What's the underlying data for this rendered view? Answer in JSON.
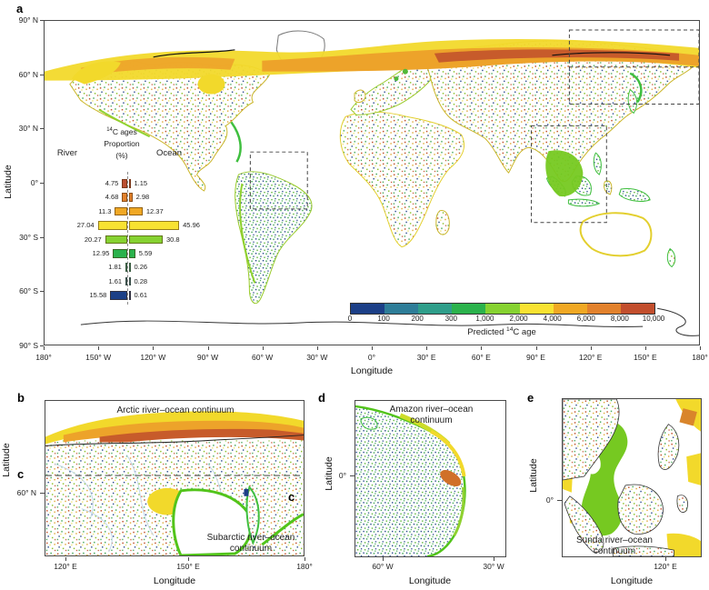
{
  "panel_a": {
    "label": "a",
    "xlabel": "Longitude",
    "ylabel": "Latitude",
    "yticks": [
      "90° N",
      "60° N",
      "30° N",
      "0°",
      "30° S",
      "60° S",
      "90° S"
    ],
    "xticks": [
      "180°",
      "150° W",
      "120° W",
      "90° W",
      "60° W",
      "30° W",
      "0°",
      "30° E",
      "60° E",
      "90° E",
      "120° E",
      "150° E",
      "180°"
    ],
    "inset": {
      "title_sup": "14",
      "title_rest": "C ages",
      "title_line2": "Proportion",
      "title_line3": "(%)",
      "left_header": "River",
      "right_header": "Ocean",
      "rows": [
        {
          "river": "4.75",
          "ocean": "1.15",
          "color": "#bc4f31"
        },
        {
          "river": "4.68",
          "ocean": "2.98",
          "color": "#e2812c"
        },
        {
          "river": "11.3",
          "ocean": "12.37",
          "color": "#f0a824"
        },
        {
          "river": "27.04",
          "ocean": "45.96",
          "color": "#f8e232"
        },
        {
          "river": "20.27",
          "ocean": "30.8",
          "color": "#86d231"
        },
        {
          "river": "12.95",
          "ocean": "5.59",
          "color": "#2bb24c"
        },
        {
          "river": "1.81",
          "ocean": "0.26",
          "color": "#2f9e8a"
        },
        {
          "river": "1.61",
          "ocean": "0.28",
          "color": "#2e7d98"
        },
        {
          "river": "15.58",
          "ocean": "0.61",
          "color": "#1c3f87"
        }
      ]
    },
    "colorbar": {
      "ticks": [
        "0",
        "100",
        "200",
        "300",
        "1,000",
        "2,000",
        "4,000",
        "6,000",
        "8,000",
        "10,000"
      ],
      "label_pre": "Predicted ",
      "label_sup": "14",
      "label_post": "C age",
      "colors": [
        "#1c3f87",
        "#2e7d98",
        "#2f9e8a",
        "#2bb24c",
        "#86d231",
        "#f8e232",
        "#f0a824",
        "#e2812c",
        "#c24e2d"
      ]
    }
  },
  "panel_b": {
    "label": "b",
    "title": "Arctic river–ocean continuum",
    "ylabel": "Latitude",
    "ytick": "60° N",
    "xticks": [
      "120° E",
      "150° E",
      "180°"
    ],
    "xlabel": "Longitude"
  },
  "panel_c": {
    "label": "c",
    "inner_label": "c",
    "title_line1": "Subarctic river–ocean",
    "title_line2": "continuum"
  },
  "panel_d": {
    "label": "d",
    "title_line1": "Amazon river–ocean",
    "title_line2": "continuum",
    "ylabel": "Latitude",
    "ytick": "0°",
    "xticks": [
      "60° W",
      "30° W"
    ],
    "xlabel": "Longitude"
  },
  "panel_e": {
    "label": "e",
    "title_line1": "Sunda river–ocean",
    "title_line2": "continuum",
    "ylabel": "Latitude",
    "ytick": "0°",
    "xticks": [
      "120° E"
    ],
    "xlabel": "Longitude"
  },
  "chart_data": [
    {
      "type": "bar",
      "subtype": "horizontal_diverging_butterfly",
      "title": "14C ages Proportion (%)",
      "groups": [
        "River",
        "Ocean"
      ],
      "age_bins_from_colorbar_oldest_to_youngest": [
        "8,000–10,000",
        "6,000–8,000",
        "4,000–6,000",
        "2,000–4,000",
        "1,000–2,000",
        "300–1,000",
        "200–300",
        "100–200",
        "0–100"
      ],
      "series": [
        {
          "name": "River",
          "values": [
            4.75,
            4.68,
            11.3,
            27.04,
            20.27,
            12.95,
            1.81,
            1.61,
            15.58
          ]
        },
        {
          "name": "Ocean",
          "values": [
            1.15,
            2.98,
            12.37,
            45.96,
            30.8,
            5.59,
            0.26,
            0.28,
            0.61
          ]
        }
      ],
      "unit": "%",
      "row_colors_top_to_bottom": [
        "#bc4f31",
        "#e2812c",
        "#f0a824",
        "#f8e232",
        "#86d231",
        "#2bb24c",
        "#2f9e8a",
        "#2e7d98",
        "#1c3f87"
      ]
    },
    {
      "type": "heatmap",
      "subtype": "map_colorbar",
      "label": "Predicted 14C age",
      "tick_labels": [
        "0",
        "100",
        "200",
        "300",
        "1,000",
        "2,000",
        "4,000",
        "6,000",
        "8,000",
        "10,000"
      ],
      "segment_colors": [
        "#1c3f87",
        "#2e7d98",
        "#2f9e8a",
        "#2bb24c",
        "#86d231",
        "#f8e232",
        "#f0a824",
        "#e2812c",
        "#c24e2d"
      ]
    }
  ]
}
